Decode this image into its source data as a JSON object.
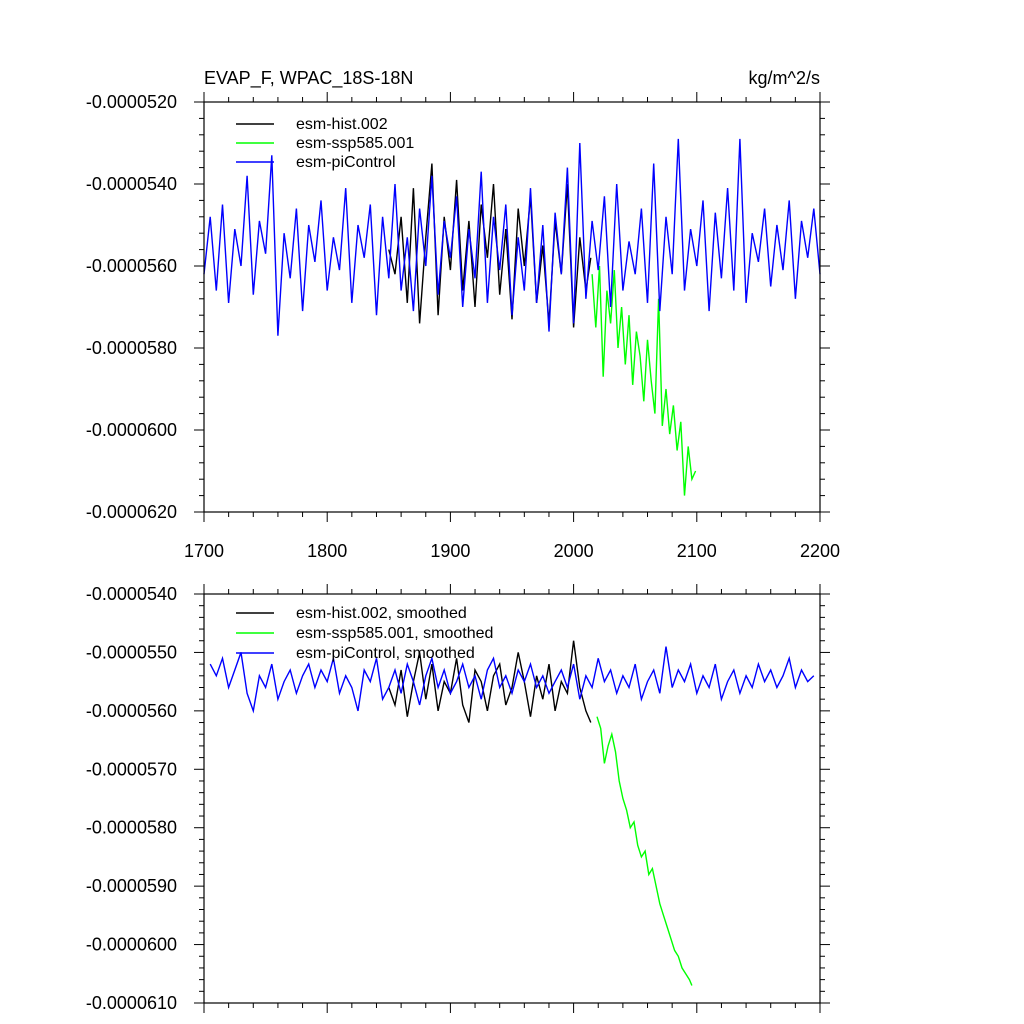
{
  "page": {
    "title": "EVAP_F, WPAC_18S-18N",
    "units": "kg/m^2/s"
  },
  "colors": {
    "esm_hist": "#000000",
    "esm_ssp585": "#00ff00",
    "esm_piControl": "#0000ff"
  },
  "chart_data": [
    {
      "type": "line",
      "title": "EVAP_F, WPAC_18S-18N",
      "units_label": "kg/m^2/s",
      "xlim": [
        1700,
        2200
      ],
      "ylim": [
        -6.2e-05,
        -5.2e-05
      ],
      "x_ticks": [
        1700,
        1800,
        1900,
        2000,
        2100,
        2200
      ],
      "x_tick_labels": [
        "1700",
        "1800",
        "1900",
        "2000",
        "2100",
        "2200"
      ],
      "y_ticks": [
        -5.2e-05,
        -5.4e-05,
        -5.6e-05,
        -5.8e-05,
        -6e-05,
        -6.2e-05
      ],
      "y_tick_labels": [
        "-0.0000520",
        "-0.0000540",
        "-0.0000560",
        "-0.0000580",
        "-0.0000600",
        "-0.0000620"
      ],
      "legend_position": "top-left",
      "series": [
        {
          "name": "esm-hist.002",
          "color": "#000000",
          "x": [
            1850,
            1855,
            1860,
            1865,
            1870,
            1875,
            1880,
            1885,
            1890,
            1895,
            1900,
            1905,
            1910,
            1915,
            1920,
            1925,
            1930,
            1935,
            1940,
            1945,
            1950,
            1955,
            1960,
            1965,
            1970,
            1975,
            1980,
            1985,
            1990,
            1995,
            2000,
            2005,
            2010,
            2014
          ],
          "y": [
            -5.56e-05,
            -5.62e-05,
            -5.48e-05,
            -5.69e-05,
            -5.41e-05,
            -5.74e-05,
            -5.53e-05,
            -5.35e-05,
            -5.72e-05,
            -5.48e-05,
            -5.61e-05,
            -5.39e-05,
            -5.66e-05,
            -5.49e-05,
            -5.7e-05,
            -5.45e-05,
            -5.58e-05,
            -5.4e-05,
            -5.67e-05,
            -5.51e-05,
            -5.73e-05,
            -5.46e-05,
            -5.6e-05,
            -5.43e-05,
            -5.69e-05,
            -5.55e-05,
            -5.74e-05,
            -5.49e-05,
            -5.62e-05,
            -5.4e-05,
            -5.75e-05,
            -5.53e-05,
            -5.66e-05,
            -5.58e-05
          ]
        },
        {
          "name": "esm-ssp585.001",
          "color": "#00ff00",
          "x": [
            2015,
            2018,
            2021,
            2024,
            2027,
            2030,
            2033,
            2036,
            2039,
            2042,
            2045,
            2048,
            2051,
            2054,
            2057,
            2060,
            2063,
            2066,
            2069,
            2072,
            2075,
            2078,
            2081,
            2084,
            2087,
            2090,
            2093,
            2096,
            2099
          ],
          "y": [
            -5.62e-05,
            -5.75e-05,
            -5.6e-05,
            -5.87e-05,
            -5.66e-05,
            -5.74e-05,
            -5.61e-05,
            -5.8e-05,
            -5.7e-05,
            -5.84e-05,
            -5.72e-05,
            -5.89e-05,
            -5.76e-05,
            -5.82e-05,
            -5.93e-05,
            -5.78e-05,
            -5.88e-05,
            -5.96e-05,
            -5.68e-05,
            -5.99e-05,
            -5.9e-05,
            -6.01e-05,
            -5.94e-05,
            -6.05e-05,
            -5.98e-05,
            -6.16e-05,
            -6.04e-05,
            -6.12e-05,
            -6.1e-05
          ]
        },
        {
          "name": "esm-piControl",
          "color": "#0000ff",
          "x": [
            1700,
            1705,
            1710,
            1715,
            1720,
            1725,
            1730,
            1735,
            1740,
            1745,
            1750,
            1755,
            1760,
            1765,
            1770,
            1775,
            1780,
            1785,
            1790,
            1795,
            1800,
            1805,
            1810,
            1815,
            1820,
            1825,
            1830,
            1835,
            1840,
            1845,
            1850,
            1855,
            1860,
            1865,
            1870,
            1875,
            1880,
            1885,
            1890,
            1895,
            1900,
            1905,
            1910,
            1915,
            1920,
            1925,
            1930,
            1935,
            1940,
            1945,
            1950,
            1955,
            1960,
            1965,
            1970,
            1975,
            1980,
            1985,
            1990,
            1995,
            2000,
            2005,
            2010,
            2015,
            2020,
            2025,
            2030,
            2035,
            2040,
            2045,
            2050,
            2055,
            2060,
            2065,
            2070,
            2075,
            2080,
            2085,
            2090,
            2095,
            2100,
            2105,
            2110,
            2115,
            2120,
            2125,
            2130,
            2135,
            2140,
            2145,
            2150,
            2155,
            2160,
            2165,
            2170,
            2175,
            2180,
            2185,
            2190,
            2195,
            2200
          ],
          "y": [
            -5.62e-05,
            -5.48e-05,
            -5.66e-05,
            -5.45e-05,
            -5.69e-05,
            -5.51e-05,
            -5.6e-05,
            -5.38e-05,
            -5.67e-05,
            -5.49e-05,
            -5.57e-05,
            -5.33e-05,
            -5.77e-05,
            -5.52e-05,
            -5.63e-05,
            -5.46e-05,
            -5.71e-05,
            -5.5e-05,
            -5.59e-05,
            -5.44e-05,
            -5.66e-05,
            -5.53e-05,
            -5.61e-05,
            -5.41e-05,
            -5.69e-05,
            -5.5e-05,
            -5.58e-05,
            -5.45e-05,
            -5.72e-05,
            -5.48e-05,
            -5.63e-05,
            -5.4e-05,
            -5.66e-05,
            -5.53e-05,
            -5.71e-05,
            -5.46e-05,
            -5.6e-05,
            -5.38e-05,
            -5.67e-05,
            -5.49e-05,
            -5.58e-05,
            -5.43e-05,
            -5.7e-05,
            -5.51e-05,
            -5.63e-05,
            -5.37e-05,
            -5.69e-05,
            -5.48e-05,
            -5.61e-05,
            -5.45e-05,
            -5.72e-05,
            -5.53e-05,
            -5.66e-05,
            -5.41e-05,
            -5.69e-05,
            -5.5e-05,
            -5.76e-05,
            -5.47e-05,
            -5.62e-05,
            -5.36e-05,
            -5.74e-05,
            -5.3e-05,
            -5.68e-05,
            -5.49e-05,
            -5.61e-05,
            -5.43e-05,
            -5.7e-05,
            -5.4e-05,
            -5.66e-05,
            -5.54e-05,
            -5.62e-05,
            -5.46e-05,
            -5.69e-05,
            -5.35e-05,
            -5.71e-05,
            -5.48e-05,
            -5.62e-05,
            -5.29e-05,
            -5.66e-05,
            -5.51e-05,
            -5.6e-05,
            -5.44e-05,
            -5.71e-05,
            -5.47e-05,
            -5.63e-05,
            -5.41e-05,
            -5.66e-05,
            -5.29e-05,
            -5.69e-05,
            -5.52e-05,
            -5.59e-05,
            -5.46e-05,
            -5.65e-05,
            -5.5e-05,
            -5.61e-05,
            -5.44e-05,
            -5.68e-05,
            -5.49e-05,
            -5.58e-05,
            -5.46e-05,
            -5.62e-05
          ]
        }
      ]
    },
    {
      "type": "line",
      "xlim": [
        1700,
        2200
      ],
      "ylim": [
        -6.1e-05,
        -5.4e-05
      ],
      "x_ticks": [
        1700,
        1800,
        1900,
        2000,
        2100,
        2200
      ],
      "y_ticks": [
        -5.4e-05,
        -5.5e-05,
        -5.6e-05,
        -5.7e-05,
        -5.8e-05,
        -5.9e-05,
        -6e-05,
        -6.1e-05
      ],
      "y_tick_labels": [
        "-0.0000540",
        "-0.0000550",
        "-0.0000560",
        "-0.0000570",
        "-0.0000580",
        "-0.0000590",
        "-0.0000600",
        "-0.0000610"
      ],
      "legend_position": "top-left",
      "series": [
        {
          "name": "esm-hist.002, smoothed",
          "color": "#000000",
          "x": [
            1850,
            1855,
            1860,
            1865,
            1870,
            1875,
            1880,
            1885,
            1890,
            1895,
            1900,
            1905,
            1910,
            1915,
            1920,
            1925,
            1930,
            1935,
            1940,
            1945,
            1950,
            1955,
            1960,
            1965,
            1970,
            1975,
            1980,
            1985,
            1990,
            1995,
            2000,
            2005,
            2010,
            2014
          ],
          "y": [
            -5.56e-05,
            -5.59e-05,
            -5.53e-05,
            -5.61e-05,
            -5.55e-05,
            -5.5e-05,
            -5.58e-05,
            -5.52e-05,
            -5.6e-05,
            -5.55e-05,
            -5.57e-05,
            -5.51e-05,
            -5.59e-05,
            -5.62e-05,
            -5.53e-05,
            -5.55e-05,
            -5.6e-05,
            -5.54e-05,
            -5.52e-05,
            -5.59e-05,
            -5.56e-05,
            -5.5e-05,
            -5.55e-05,
            -5.61e-05,
            -5.54e-05,
            -5.58e-05,
            -5.52e-05,
            -5.6e-05,
            -5.55e-05,
            -5.57e-05,
            -5.48e-05,
            -5.56e-05,
            -5.6e-05,
            -5.62e-05
          ]
        },
        {
          "name": "esm-ssp585.001, smoothed",
          "color": "#00ff00",
          "x": [
            2019,
            2022,
            2025,
            2028,
            2031,
            2034,
            2037,
            2040,
            2043,
            2046,
            2049,
            2052,
            2055,
            2058,
            2061,
            2064,
            2067,
            2070,
            2073,
            2076,
            2079,
            2082,
            2085,
            2088,
            2091,
            2094,
            2096
          ],
          "y": [
            -5.61e-05,
            -5.63e-05,
            -5.69e-05,
            -5.66e-05,
            -5.64e-05,
            -5.67e-05,
            -5.72e-05,
            -5.75e-05,
            -5.77e-05,
            -5.8e-05,
            -5.79e-05,
            -5.83e-05,
            -5.85e-05,
            -5.84e-05,
            -5.88e-05,
            -5.87e-05,
            -5.9e-05,
            -5.93e-05,
            -5.95e-05,
            -5.97e-05,
            -5.99e-05,
            -6.01e-05,
            -6.02e-05,
            -6.04e-05,
            -6.05e-05,
            -6.06e-05,
            -6.07e-05
          ]
        },
        {
          "name": "esm-piControl, smoothed",
          "color": "#0000ff",
          "x": [
            1705,
            1710,
            1715,
            1720,
            1725,
            1730,
            1735,
            1740,
            1745,
            1750,
            1755,
            1760,
            1765,
            1770,
            1775,
            1780,
            1785,
            1790,
            1795,
            1800,
            1805,
            1810,
            1815,
            1820,
            1825,
            1830,
            1835,
            1840,
            1845,
            1850,
            1855,
            1860,
            1865,
            1870,
            1875,
            1880,
            1885,
            1890,
            1895,
            1900,
            1905,
            1910,
            1915,
            1920,
            1925,
            1930,
            1935,
            1940,
            1945,
            1950,
            1955,
            1960,
            1965,
            1970,
            1975,
            1980,
            1985,
            1990,
            1995,
            2000,
            2005,
            2010,
            2015,
            2020,
            2025,
            2030,
            2035,
            2040,
            2045,
            2050,
            2055,
            2060,
            2065,
            2070,
            2075,
            2080,
            2085,
            2090,
            2095,
            2100,
            2105,
            2110,
            2115,
            2120,
            2125,
            2130,
            2135,
            2140,
            2145,
            2150,
            2155,
            2160,
            2165,
            2170,
            2175,
            2180,
            2185,
            2190,
            2195
          ],
          "y": [
            -5.52e-05,
            -5.54e-05,
            -5.51e-05,
            -5.56e-05,
            -5.53e-05,
            -5.5e-05,
            -5.57e-05,
            -5.6e-05,
            -5.54e-05,
            -5.56e-05,
            -5.52e-05,
            -5.58e-05,
            -5.55e-05,
            -5.53e-05,
            -5.57e-05,
            -5.54e-05,
            -5.52e-05,
            -5.56e-05,
            -5.53e-05,
            -5.55e-05,
            -5.51e-05,
            -5.57e-05,
            -5.54e-05,
            -5.56e-05,
            -5.6e-05,
            -5.53e-05,
            -5.55e-05,
            -5.51e-05,
            -5.58e-05,
            -5.56e-05,
            -5.53e-05,
            -5.57e-05,
            -5.52e-05,
            -5.55e-05,
            -5.59e-05,
            -5.54e-05,
            -5.51e-05,
            -5.56e-05,
            -5.53e-05,
            -5.57e-05,
            -5.55e-05,
            -5.52e-05,
            -5.56e-05,
            -5.54e-05,
            -5.58e-05,
            -5.53e-05,
            -5.51e-05,
            -5.56e-05,
            -5.54e-05,
            -5.57e-05,
            -5.53e-05,
            -5.55e-05,
            -5.52e-05,
            -5.56e-05,
            -5.54e-05,
            -5.57e-05,
            -5.55e-05,
            -5.53e-05,
            -5.56e-05,
            -5.52e-05,
            -5.58e-05,
            -5.54e-05,
            -5.56e-05,
            -5.51e-05,
            -5.55e-05,
            -5.53e-05,
            -5.57e-05,
            -5.54e-05,
            -5.56e-05,
            -5.52e-05,
            -5.58e-05,
            -5.55e-05,
            -5.53e-05,
            -5.57e-05,
            -5.49e-05,
            -5.56e-05,
            -5.53e-05,
            -5.55e-05,
            -5.52e-05,
            -5.57e-05,
            -5.54e-05,
            -5.56e-05,
            -5.52e-05,
            -5.58e-05,
            -5.55e-05,
            -5.53e-05,
            -5.57e-05,
            -5.54e-05,
            -5.56e-05,
            -5.52e-05,
            -5.55e-05,
            -5.53e-05,
            -5.56e-05,
            -5.54e-05,
            -5.51e-05,
            -5.56e-05,
            -5.53e-05,
            -5.55e-05,
            -5.54e-05
          ]
        }
      ]
    }
  ]
}
